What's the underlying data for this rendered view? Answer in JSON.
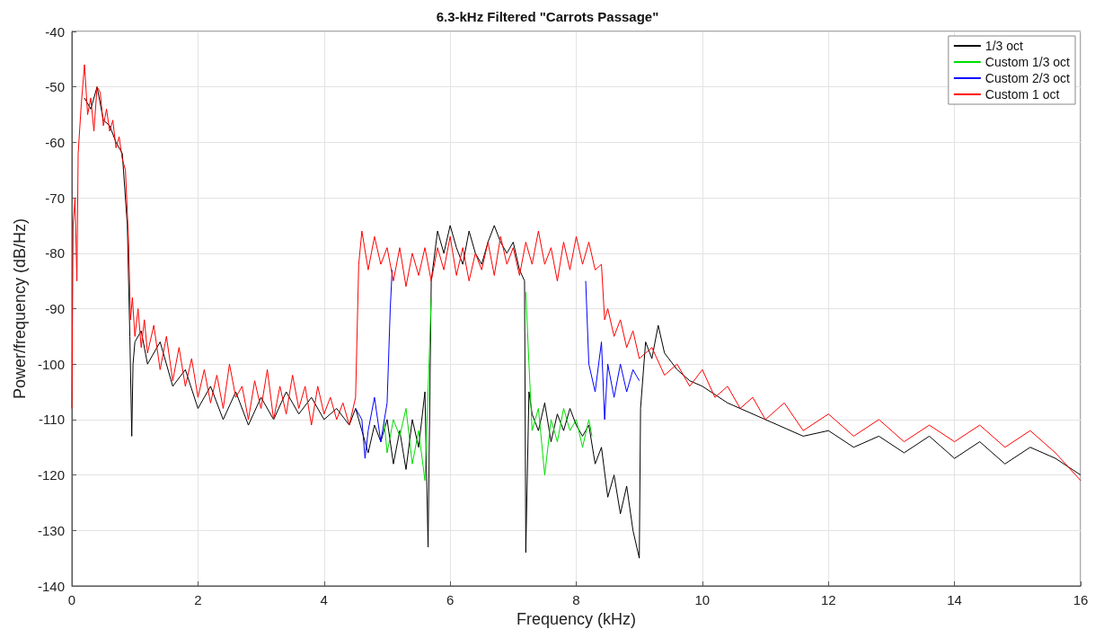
{
  "chart_data": {
    "type": "line",
    "title": "6.3-kHz Filtered \"Carrots Passage\"",
    "xlabel": "Frequency (kHz)",
    "ylabel": "Power/frequency (dB/Hz)",
    "xlim": [
      0,
      16
    ],
    "xticks": [
      0,
      2,
      4,
      6,
      8,
      10,
      12,
      14,
      16
    ],
    "ylim": [
      -140,
      -40
    ],
    "yticks": [
      -140,
      -130,
      -120,
      -110,
      -100,
      -90,
      -80,
      -70,
      -60,
      -50,
      -40
    ],
    "grid": true,
    "legend": "top right",
    "marker": "none",
    "line_style": "solid",
    "series": [
      {
        "name": "1/3 oct",
        "color": "#000000",
        "x": [
          0.2,
          0.3,
          0.4,
          0.5,
          0.6,
          0.7,
          0.8,
          0.88,
          0.92,
          0.95,
          0.97,
          1.0,
          1.1,
          1.2,
          1.4,
          1.6,
          1.8,
          2.0,
          2.2,
          2.4,
          2.6,
          2.8,
          3.0,
          3.2,
          3.4,
          3.6,
          3.8,
          4.0,
          4.2,
          4.4,
          4.5,
          4.6,
          4.7,
          4.8,
          4.9,
          5.0,
          5.1,
          5.2,
          5.3,
          5.4,
          5.5,
          5.6,
          5.65,
          5.7,
          5.8,
          5.9,
          6.0,
          6.1,
          6.2,
          6.3,
          6.4,
          6.5,
          6.6,
          6.7,
          6.8,
          6.9,
          7.0,
          7.1,
          7.18,
          7.2,
          7.25,
          7.3,
          7.4,
          7.5,
          7.6,
          7.7,
          7.8,
          7.9,
          8.0,
          8.1,
          8.2,
          8.3,
          8.4,
          8.5,
          8.6,
          8.7,
          8.8,
          8.9,
          9.0,
          9.02,
          9.1,
          9.2,
          9.3,
          9.4,
          9.6,
          9.8,
          10.0,
          10.4,
          10.8,
          11.2,
          11.6,
          12.0,
          12.4,
          12.8,
          13.2,
          13.6,
          14.0,
          14.4,
          14.8,
          15.2,
          15.6,
          16.0
        ],
        "values": [
          -52,
          -54,
          -50,
          -56,
          -57,
          -60,
          -62,
          -75,
          -95,
          -113,
          -100,
          -96,
          -94,
          -100,
          -96,
          -104,
          -101,
          -108,
          -104,
          -110,
          -105,
          -111,
          -106,
          -110,
          -105,
          -109,
          -106,
          -110,
          -108,
          -111,
          -108,
          -112,
          -116,
          -111,
          -114,
          -110,
          -118,
          -112,
          -119,
          -110,
          -115,
          -105,
          -133,
          -85,
          -76,
          -80,
          -75,
          -79,
          -82,
          -76,
          -80,
          -82,
          -78,
          -75,
          -78,
          -80,
          -78,
          -83,
          -85,
          -134,
          -105,
          -109,
          -112,
          -107,
          -114,
          -109,
          -112,
          -108,
          -111,
          -113,
          -111,
          -118,
          -115,
          -124,
          -120,
          -127,
          -122,
          -130,
          -135,
          -108,
          -96,
          -99,
          -93,
          -98,
          -101,
          -103,
          -104,
          -107,
          -109,
          -111,
          -113,
          -112,
          -115,
          -113,
          -116,
          -113,
          -117,
          -114,
          -118,
          -115,
          -117,
          -120
        ]
      },
      {
        "name": "Custom 1/3 oct",
        "color": "#00dd00",
        "x": [
          4.95,
          5.0,
          5.1,
          5.2,
          5.3,
          5.4,
          5.5,
          5.6,
          5.65,
          5.7,
          6.0,
          7.2,
          7.25,
          7.3,
          7.4,
          7.5,
          7.6,
          7.7,
          7.8,
          7.9,
          8.0,
          8.1,
          8.2,
          8.25
        ],
        "values": [
          -110,
          -116,
          -110,
          -113,
          -108,
          -118,
          -112,
          -121,
          -105,
          -88,
          null,
          -87,
          -100,
          -112,
          -108,
          -120,
          -110,
          -114,
          -108,
          -112,
          -110,
          -115,
          -110,
          -113
        ]
      },
      {
        "name": "Custom 2/3 oct",
        "color": "#0000ff",
        "x": [
          4.5,
          4.6,
          4.65,
          4.7,
          4.8,
          4.9,
          5.0,
          5.05,
          5.08,
          6.0,
          8.15,
          8.2,
          8.3,
          8.4,
          8.45,
          8.5,
          8.6,
          8.7,
          8.8,
          8.9,
          9.0
        ],
        "values": [
          -108,
          -110,
          -117,
          -112,
          -106,
          -114,
          -107,
          -90,
          -83,
          null,
          -85,
          -100,
          -105,
          -96,
          -110,
          -100,
          -106,
          -100,
          -105,
          -101,
          -103
        ]
      },
      {
        "name": "Custom 1 oct",
        "color": "#ff0000",
        "x": [
          0,
          0.02,
          0.05,
          0.08,
          0.1,
          0.15,
          0.2,
          0.25,
          0.3,
          0.35,
          0.4,
          0.45,
          0.5,
          0.55,
          0.6,
          0.65,
          0.7,
          0.75,
          0.8,
          0.85,
          0.9,
          0.93,
          0.96,
          1.0,
          1.05,
          1.1,
          1.15,
          1.2,
          1.3,
          1.4,
          1.5,
          1.6,
          1.7,
          1.8,
          1.9,
          2.0,
          2.1,
          2.2,
          2.3,
          2.4,
          2.5,
          2.6,
          2.7,
          2.8,
          2.9,
          3.0,
          3.1,
          3.2,
          3.3,
          3.4,
          3.5,
          3.6,
          3.7,
          3.8,
          3.9,
          4.0,
          4.1,
          4.2,
          4.3,
          4.4,
          4.5,
          4.55,
          4.6,
          4.7,
          4.8,
          4.9,
          5.0,
          5.1,
          5.2,
          5.3,
          5.4,
          5.5,
          5.6,
          5.7,
          5.8,
          5.9,
          6.0,
          6.1,
          6.2,
          6.3,
          6.4,
          6.5,
          6.6,
          6.7,
          6.8,
          6.9,
          7.0,
          7.1,
          7.2,
          7.3,
          7.4,
          7.5,
          7.6,
          7.7,
          7.8,
          7.9,
          8.0,
          8.1,
          8.2,
          8.3,
          8.4,
          8.45,
          8.5,
          8.6,
          8.7,
          8.8,
          8.9,
          9.0,
          9.2,
          9.4,
          9.6,
          9.8,
          10.0,
          10.2,
          10.4,
          10.6,
          10.8,
          11.0,
          11.3,
          11.6,
          12.0,
          12.4,
          12.8,
          13.2,
          13.6,
          14.0,
          14.4,
          14.8,
          15.2,
          15.6,
          16.0
        ],
        "values": [
          -108,
          -75,
          -70,
          -85,
          -62,
          -53,
          -46,
          -55,
          -52,
          -58,
          -50,
          -51,
          -57,
          -54,
          -58,
          -56,
          -61,
          -59,
          -63,
          -65,
          -78,
          -92,
          -88,
          -95,
          -90,
          -97,
          -92,
          -98,
          -93,
          -101,
          -95,
          -103,
          -97,
          -104,
          -99,
          -106,
          -101,
          -107,
          -102,
          -108,
          -100,
          -106,
          -104,
          -110,
          -103,
          -108,
          -101,
          -110,
          -104,
          -109,
          -102,
          -108,
          -104,
          -111,
          -104,
          -109,
          -106,
          -110,
          -107,
          -111,
          -106,
          -82,
          -76,
          -83,
          -77,
          -82,
          -79,
          -85,
          -79,
          -86,
          -80,
          -84,
          -79,
          -85,
          -79,
          -83,
          -77,
          -84,
          -79,
          -85,
          -80,
          -83,
          -78,
          -84,
          -77,
          -82,
          -79,
          -84,
          -78,
          -82,
          -76,
          -82,
          -79,
          -85,
          -78,
          -83,
          -77,
          -82,
          -78,
          -83,
          -82,
          -92,
          -90,
          -95,
          -92,
          -97,
          -94,
          -99,
          -97,
          -102,
          -100,
          -104,
          -101,
          -106,
          -104,
          -108,
          -106,
          -110,
          -107,
          -112,
          -109,
          -113,
          -110,
          -114,
          -111,
          -114,
          -111,
          -115,
          -112,
          -116,
          -121
        ]
      }
    ]
  }
}
